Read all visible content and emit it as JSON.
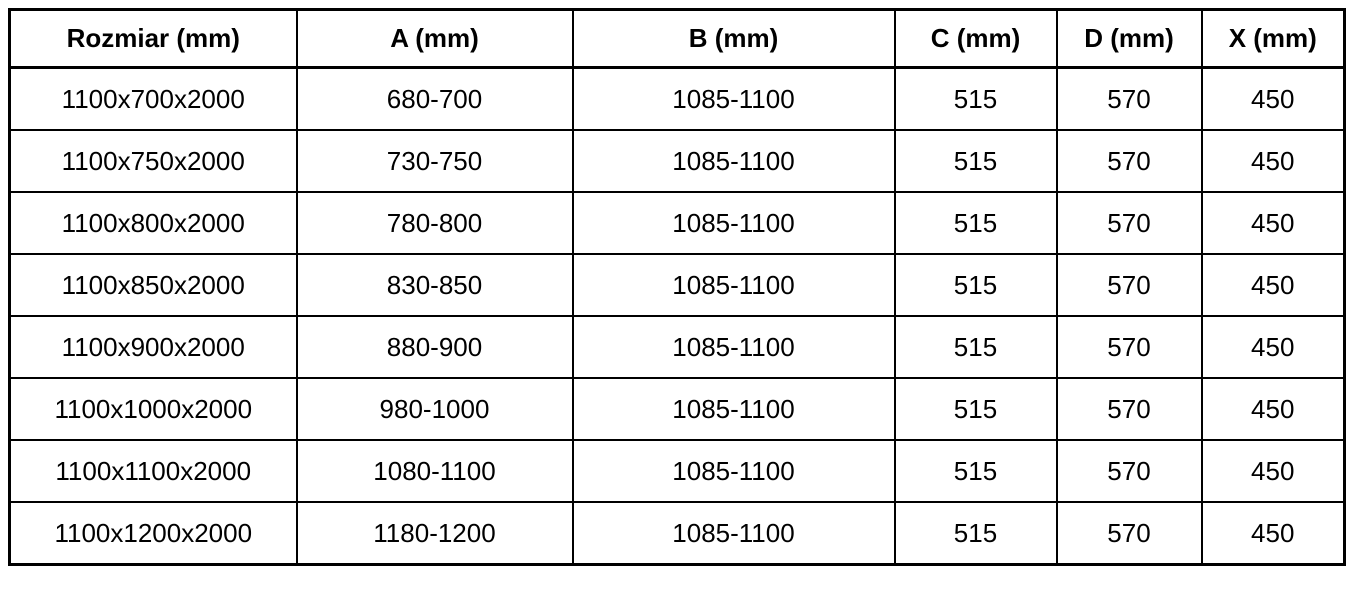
{
  "colors": {
    "border": "#000000",
    "text": "#000000",
    "background": "#ffffff"
  },
  "table": {
    "columns": [
      "Rozmiar (mm)",
      "A (mm)",
      "B (mm)",
      "C (mm)",
      "D (mm)",
      "X (mm)"
    ],
    "rows": [
      [
        "1100x700x2000",
        "680-700",
        "1085-1100",
        "515",
        "570",
        "450"
      ],
      [
        "1100x750x2000",
        "730-750",
        "1085-1100",
        "515",
        "570",
        "450"
      ],
      [
        "1100x800x2000",
        "780-800",
        "1085-1100",
        "515",
        "570",
        "450"
      ],
      [
        "1100x850x2000",
        "830-850",
        "1085-1100",
        "515",
        "570",
        "450"
      ],
      [
        "1100x900x2000",
        "880-900",
        "1085-1100",
        "515",
        "570",
        "450"
      ],
      [
        "1100x1000x2000",
        "980-1000",
        "1085-1100",
        "515",
        "570",
        "450"
      ],
      [
        "1100x1100x2000",
        "1080-1100",
        "1085-1100",
        "515",
        "570",
        "450"
      ],
      [
        "1100x1200x2000",
        "1180-1200",
        "1085-1100",
        "515",
        "570",
        "450"
      ]
    ]
  }
}
